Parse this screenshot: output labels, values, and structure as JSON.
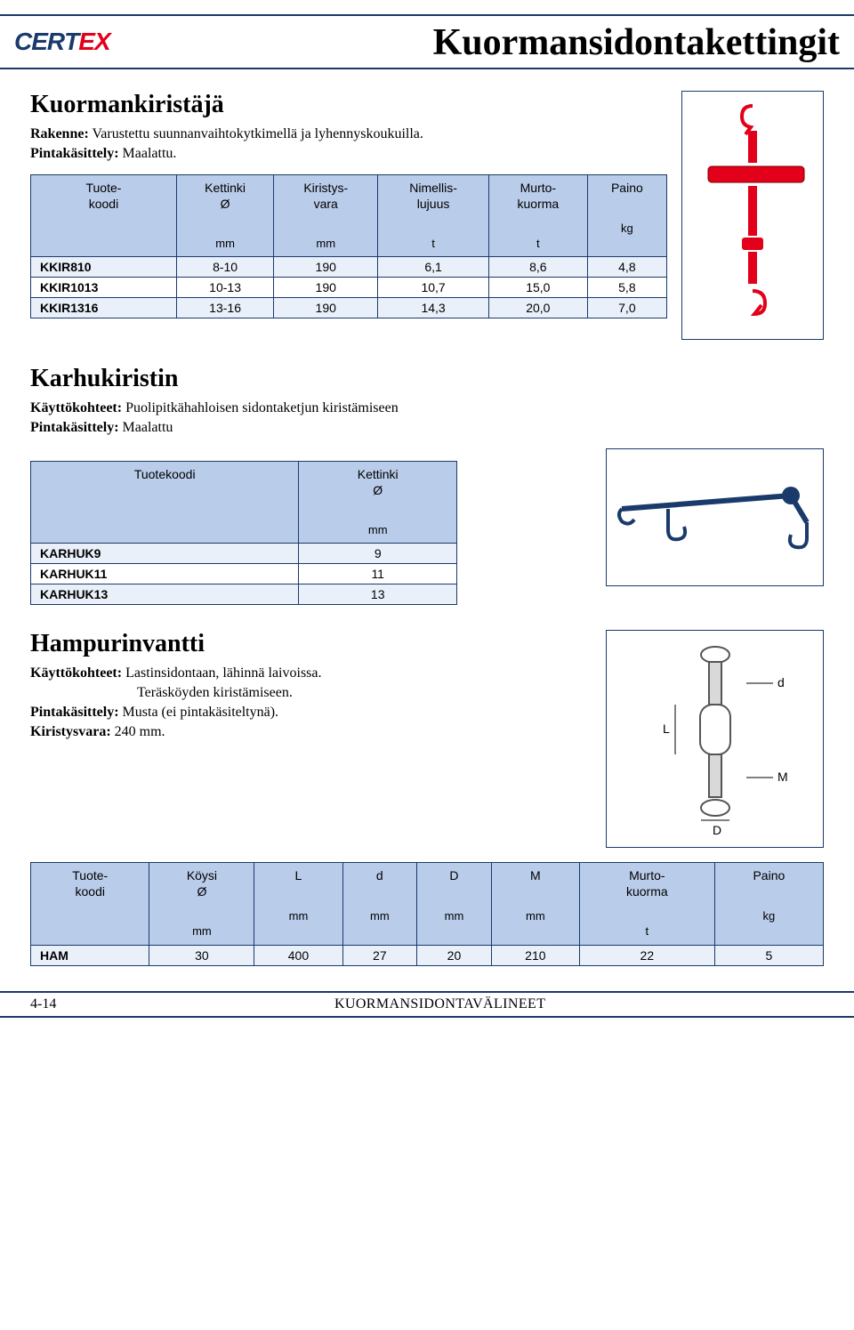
{
  "header": {
    "logo": {
      "c": "C",
      "e1": "E",
      "r": "R",
      "t": "T",
      "e2": "E",
      "x": "X"
    },
    "title": "Kuormansidontakettingit"
  },
  "section1": {
    "title": "Kuormankiristäjä",
    "desc1_label": "Rakenne:",
    "desc1_text": " Varustettu suunnanvaihtokytkimellä ja lyhennyskoukuilla.",
    "desc2_label": "Pintakäsittely:",
    "desc2_text": " Maalattu.",
    "table": {
      "headers": [
        {
          "l1": "Tuote-",
          "l2": "koodi",
          "unit": ""
        },
        {
          "l1": "Kettinki",
          "l2": "Ø",
          "unit": "mm"
        },
        {
          "l1": "Kiristys-",
          "l2": "vara",
          "unit": "mm"
        },
        {
          "l1": "Nimellis-",
          "l2": "lujuus",
          "unit": "t"
        },
        {
          "l1": "Murto-",
          "l2": "kuorma",
          "unit": "t"
        },
        {
          "l1": "Paino",
          "l2": "",
          "unit": "kg"
        }
      ],
      "rows": [
        [
          "KKIR810",
          "8-10",
          "190",
          "6,1",
          "8,6",
          "4,8"
        ],
        [
          "KKIR1013",
          "10-13",
          "190",
          "10,7",
          "15,0",
          "5,8"
        ],
        [
          "KKIR1316",
          "13-16",
          "190",
          "14,3",
          "20,0",
          "7,0"
        ]
      ]
    }
  },
  "section2": {
    "title": "Karhukiristin",
    "desc1_label": "Käyttökohteet:",
    "desc1_text": " Puolipitkähahloisen sidontaketjun kiristämiseen",
    "desc2_label": "Pintakäsittely:",
    "desc2_text": " Maalattu",
    "table": {
      "headers": [
        {
          "l1": "Tuotekoodi",
          "l2": "",
          "unit": ""
        },
        {
          "l1": "Kettinki",
          "l2": "Ø",
          "unit": "mm"
        }
      ],
      "rows": [
        [
          "KARHUK9",
          "9"
        ],
        [
          "KARHUK11",
          "11"
        ],
        [
          "KARHUK13",
          "13"
        ]
      ]
    }
  },
  "section3": {
    "title": "Hampurinvantti",
    "desc1_label": "Käyttökohteet:",
    "desc1_text": " Lastinsidontaan, lähinnä laivoissa.",
    "desc1b_text": "Teräsköyden kiristämiseen.",
    "desc2_label": "Pintakäsittely:",
    "desc2_text": " Musta (ei pintakäsiteltynä).",
    "desc3_label": "Kiristysvara:",
    "desc3_text": " 240 mm.",
    "dim_labels": {
      "d": "d",
      "L": "L",
      "M": "M",
      "D": "D"
    },
    "table": {
      "headers": [
        {
          "l1": "Tuote-",
          "l2": "koodi",
          "unit": ""
        },
        {
          "l1": "Köysi",
          "l2": "Ø",
          "unit": "mm"
        },
        {
          "l1": "",
          "l2": "L",
          "unit": "mm"
        },
        {
          "l1": "",
          "l2": "d",
          "unit": "mm"
        },
        {
          "l1": "",
          "l2": "D",
          "unit": "mm"
        },
        {
          "l1": "",
          "l2": "M",
          "unit": "mm"
        },
        {
          "l1": "Murto-",
          "l2": "kuorma",
          "unit": "t"
        },
        {
          "l1": "Paino",
          "l2": "",
          "unit": "kg"
        }
      ],
      "rows": [
        [
          "HAM",
          "30",
          "400",
          "27",
          "20",
          "210",
          "22",
          "5"
        ]
      ]
    }
  },
  "footer": {
    "page": "4-14",
    "section": "KUORMANSIDONTAVÄLINEET"
  },
  "colors": {
    "border": "#1a3a6b",
    "header_bg": "#b9ccea",
    "row_alt": "#eaf0fa",
    "logo_blue": "#1a3a6b",
    "logo_red": "#e2001a"
  }
}
